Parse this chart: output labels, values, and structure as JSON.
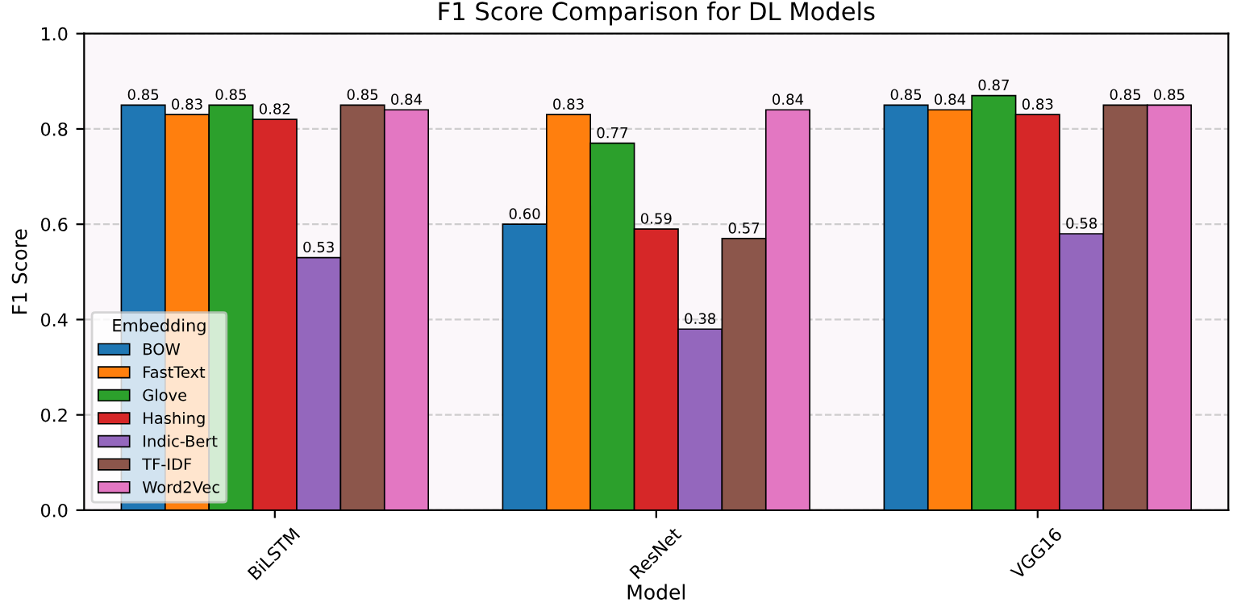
{
  "chart_data": {
    "type": "bar",
    "title": "F1 Score Comparison for DL Models",
    "xlabel": "Model",
    "ylabel": "F1 Score",
    "legend_title": "Embedding",
    "categories": [
      "BiLSTM",
      "ResNet",
      "VGG16"
    ],
    "series": [
      {
        "name": "BOW",
        "color": "#1f77b4",
        "values": [
          0.85,
          0.6,
          0.85
        ],
        "value_labels": [
          "0.85",
          "0.60",
          "0.85"
        ]
      },
      {
        "name": "FastText",
        "color": "#ff7f0e",
        "values": [
          0.83,
          0.83,
          0.84
        ],
        "value_labels": [
          "0.83",
          "0.83",
          "0.84"
        ]
      },
      {
        "name": "Glove",
        "color": "#2ca02c",
        "values": [
          0.85,
          0.77,
          0.87
        ],
        "value_labels": [
          "0.85",
          "0.77",
          "0.87"
        ]
      },
      {
        "name": "Hashing",
        "color": "#d62728",
        "values": [
          0.82,
          0.59,
          0.83
        ],
        "value_labels": [
          "0.82",
          "0.59",
          "0.83"
        ]
      },
      {
        "name": "Indic-Bert",
        "color": "#9467bd",
        "values": [
          0.53,
          0.38,
          0.58
        ],
        "value_labels": [
          "0.53",
          "0.38",
          "0.58"
        ]
      },
      {
        "name": "TF-IDF",
        "color": "#8c564b",
        "values": [
          0.85,
          0.57,
          0.85
        ],
        "value_labels": [
          "0.85",
          "0.57",
          "0.85"
        ]
      },
      {
        "name": "Word2Vec",
        "color": "#e377c2",
        "values": [
          0.84,
          0.84,
          0.85
        ],
        "value_labels": [
          "0.84",
          "0.84",
          "0.85"
        ]
      }
    ],
    "ylim": [
      0,
      1.0
    ],
    "yticks": [
      {
        "value": 0,
        "label": "0.0"
      },
      0.2,
      0.4,
      0.6,
      0.8,
      {
        "value": 1,
        "label": "1.0"
      }
    ],
    "grid": "y",
    "legend": "bottom left"
  }
}
